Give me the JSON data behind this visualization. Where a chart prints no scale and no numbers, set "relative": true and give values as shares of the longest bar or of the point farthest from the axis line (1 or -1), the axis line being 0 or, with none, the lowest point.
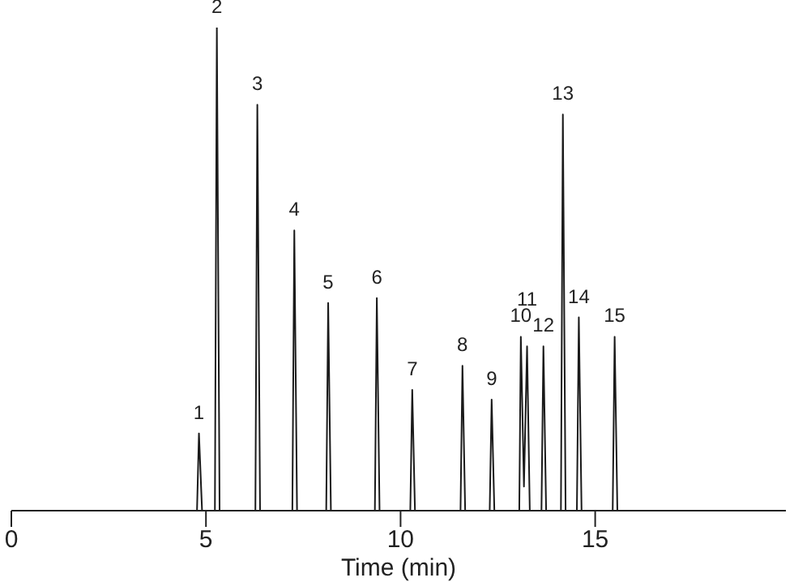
{
  "chart_data": {
    "type": "line",
    "relative": true,
    "xlabel": "Time (min)",
    "xlim": [
      0,
      19.9
    ],
    "xticks": [
      0,
      5,
      10,
      15
    ],
    "grid": false,
    "marker": "none",
    "line_style": "solid",
    "series": [
      {
        "color": "#1a1a1a",
        "x": [
          0,
          4.77,
          4.82,
          4.9,
          5.23,
          5.28,
          5.35,
          6.27,
          6.32,
          6.39,
          7.22,
          7.27,
          7.34,
          8.09,
          8.14,
          8.21,
          9.34,
          9.39,
          9.46,
          10.25,
          10.3,
          10.37,
          11.54,
          11.59,
          11.66,
          12.29,
          12.34,
          12.41,
          13.05,
          13.09,
          13.17,
          13.25,
          13.32,
          13.62,
          13.67,
          13.74,
          14.12,
          14.17,
          14.24,
          14.53,
          14.58,
          14.65,
          15.45,
          15.5,
          15.57,
          19.9
        ],
        "values": [
          0,
          0,
          0.16,
          0,
          0,
          1,
          0,
          0,
          0.84,
          0,
          0,
          0.58,
          0,
          0,
          0.43,
          0,
          0,
          0.44,
          0,
          0,
          0.25,
          0,
          0,
          0.3,
          0,
          0,
          0.23,
          0,
          0,
          0.36,
          0.05,
          0.34,
          0,
          0,
          0.34,
          0,
          0,
          0.82,
          0,
          0,
          0.4,
          0,
          0,
          0.36,
          0,
          0
        ]
      }
    ],
    "annotations": [
      {
        "text": "1",
        "x": 4.82,
        "y": 0.16
      },
      {
        "text": "2",
        "x": 5.28,
        "y": 1
      },
      {
        "text": "3",
        "x": 6.32,
        "y": 0.84
      },
      {
        "text": "4",
        "x": 7.27,
        "y": 0.58
      },
      {
        "text": "5",
        "x": 8.14,
        "y": 0.43
      },
      {
        "text": "6",
        "x": 9.39,
        "y": 0.44
      },
      {
        "text": "7",
        "x": 10.3,
        "y": 0.25
      },
      {
        "text": "8",
        "x": 11.59,
        "y": 0.3
      },
      {
        "text": "9",
        "x": 12.34,
        "y": 0.23
      },
      {
        "text": "10",
        "x": 13.09,
        "y": 0.36
      },
      {
        "text": "11",
        "x": 13.25,
        "y": 0.34
      },
      {
        "text": "12",
        "x": 13.67,
        "y": 0.34
      },
      {
        "text": "13",
        "x": 14.17,
        "y": 0.82
      },
      {
        "text": "14",
        "x": 14.58,
        "y": 0.4
      },
      {
        "text": "15",
        "x": 15.5,
        "y": 0.36
      }
    ]
  }
}
